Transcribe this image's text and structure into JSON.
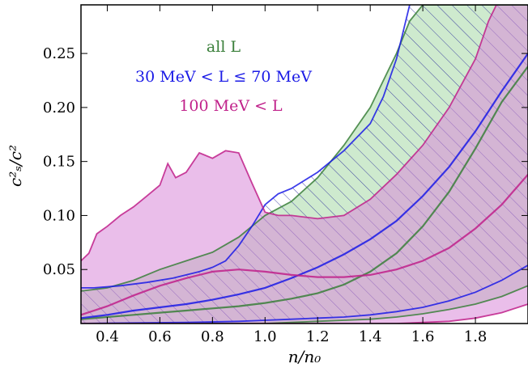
{
  "chart_data": {
    "type": "area",
    "xlabel": "n/n₀",
    "ylabel": "c²ₛ/c²",
    "xlim": [
      0.3,
      2.0
    ],
    "ylim": [
      0.0,
      0.295
    ],
    "xticks": [
      0.4,
      0.6,
      0.8,
      1.0,
      1.2,
      1.4,
      1.6,
      1.8
    ],
    "xtick_labels": [
      "0.4",
      "0.6",
      "0.8",
      "1.0",
      "1.2",
      "1.4",
      "1.6",
      "1.8"
    ],
    "yticks": [
      0.05,
      0.1,
      0.15,
      0.2,
      0.25
    ],
    "ytick_labels": [
      "0.05",
      "0.10",
      "0.15",
      "0.20",
      "0.25"
    ],
    "grid": false,
    "legend_position": "top-center",
    "legend": [
      {
        "text": "all L",
        "color": "#3a7f3a"
      },
      {
        "text": "30 MeV < L ≤ 70 MeV",
        "color": "#1a1ae6"
      },
      {
        "text": "100 MeV < L",
        "color": "#c0208a"
      }
    ],
    "series": [
      {
        "name": "all L",
        "color": "#3a7f3a",
        "fill": "#a6d8a6",
        "style": "filled band",
        "upper": [
          [
            0.3,
            0.03
          ],
          [
            0.4,
            0.033
          ],
          [
            0.5,
            0.04
          ],
          [
            0.6,
            0.05
          ],
          [
            0.7,
            0.058
          ],
          [
            0.8,
            0.066
          ],
          [
            0.9,
            0.08
          ],
          [
            1.0,
            0.1
          ],
          [
            1.1,
            0.113
          ],
          [
            1.2,
            0.135
          ],
          [
            1.3,
            0.165
          ],
          [
            1.4,
            0.2
          ],
          [
            1.5,
            0.25
          ],
          [
            1.55,
            0.28
          ],
          [
            1.6,
            0.295
          ],
          [
            1.7,
            0.295
          ],
          [
            1.8,
            0.295
          ],
          [
            1.9,
            0.295
          ],
          [
            2.0,
            0.295
          ]
        ],
        "median": [
          [
            0.3,
            0.004
          ],
          [
            0.4,
            0.006
          ],
          [
            0.5,
            0.008
          ],
          [
            0.6,
            0.01
          ],
          [
            0.7,
            0.012
          ],
          [
            0.8,
            0.014
          ],
          [
            0.9,
            0.016
          ],
          [
            1.0,
            0.019
          ],
          [
            1.1,
            0.023
          ],
          [
            1.2,
            0.028
          ],
          [
            1.3,
            0.036
          ],
          [
            1.4,
            0.048
          ],
          [
            1.5,
            0.065
          ],
          [
            1.6,
            0.09
          ],
          [
            1.7,
            0.122
          ],
          [
            1.8,
            0.162
          ],
          [
            1.9,
            0.205
          ],
          [
            2.0,
            0.238
          ]
        ],
        "lower": [
          [
            0.3,
            0.0
          ],
          [
            0.4,
            0.0
          ],
          [
            0.5,
            0.0
          ],
          [
            0.6,
            0.0
          ],
          [
            0.7,
            0.0
          ],
          [
            0.8,
            0.0
          ],
          [
            0.9,
            0.0
          ],
          [
            1.0,
            0.0
          ],
          [
            1.1,
            0.001
          ],
          [
            1.2,
            0.002
          ],
          [
            1.3,
            0.003
          ],
          [
            1.4,
            0.004
          ],
          [
            1.5,
            0.006
          ],
          [
            1.6,
            0.009
          ],
          [
            1.7,
            0.013
          ],
          [
            1.8,
            0.018
          ],
          [
            1.9,
            0.025
          ],
          [
            2.0,
            0.035
          ]
        ]
      },
      {
        "name": "30 MeV < L ≤ 70 MeV",
        "color": "#1a1ae6",
        "fill": "none",
        "style": "hatched band",
        "upper": [
          [
            0.3,
            0.033
          ],
          [
            0.35,
            0.033
          ],
          [
            0.45,
            0.035
          ],
          [
            0.55,
            0.038
          ],
          [
            0.65,
            0.042
          ],
          [
            0.75,
            0.048
          ],
          [
            0.8,
            0.052
          ],
          [
            0.85,
            0.058
          ],
          [
            0.9,
            0.072
          ],
          [
            0.95,
            0.09
          ],
          [
            1.0,
            0.11
          ],
          [
            1.05,
            0.12
          ],
          [
            1.1,
            0.125
          ],
          [
            1.2,
            0.14
          ],
          [
            1.3,
            0.16
          ],
          [
            1.4,
            0.185
          ],
          [
            1.45,
            0.21
          ],
          [
            1.5,
            0.245
          ],
          [
            1.53,
            0.275
          ],
          [
            1.55,
            0.295
          ]
        ],
        "median": [
          [
            0.3,
            0.005
          ],
          [
            0.4,
            0.008
          ],
          [
            0.5,
            0.012
          ],
          [
            0.6,
            0.015
          ],
          [
            0.7,
            0.018
          ],
          [
            0.8,
            0.022
          ],
          [
            0.9,
            0.027
          ],
          [
            1.0,
            0.033
          ],
          [
            1.1,
            0.042
          ],
          [
            1.2,
            0.052
          ],
          [
            1.3,
            0.064
          ],
          [
            1.4,
            0.078
          ],
          [
            1.5,
            0.095
          ],
          [
            1.6,
            0.118
          ],
          [
            1.7,
            0.145
          ],
          [
            1.8,
            0.178
          ],
          [
            1.9,
            0.215
          ],
          [
            2.0,
            0.25
          ]
        ],
        "lower": [
          [
            0.3,
            0.0
          ],
          [
            0.5,
            0.0005
          ],
          [
            0.7,
            0.001
          ],
          [
            0.9,
            0.002
          ],
          [
            1.0,
            0.003
          ],
          [
            1.1,
            0.004
          ],
          [
            1.2,
            0.005
          ],
          [
            1.3,
            0.006
          ],
          [
            1.4,
            0.008
          ],
          [
            1.5,
            0.011
          ],
          [
            1.6,
            0.015
          ],
          [
            1.7,
            0.021
          ],
          [
            1.8,
            0.029
          ],
          [
            1.9,
            0.04
          ],
          [
            2.0,
            0.054
          ]
        ]
      },
      {
        "name": "100 MeV < L",
        "color": "#c0208a",
        "fill": "#d888d8",
        "style": "filled band",
        "upper": [
          [
            0.3,
            0.058
          ],
          [
            0.33,
            0.065
          ],
          [
            0.36,
            0.083
          ],
          [
            0.4,
            0.09
          ],
          [
            0.45,
            0.1
          ],
          [
            0.5,
            0.108
          ],
          [
            0.55,
            0.118
          ],
          [
            0.6,
            0.128
          ],
          [
            0.63,
            0.148
          ],
          [
            0.66,
            0.135
          ],
          [
            0.7,
            0.14
          ],
          [
            0.75,
            0.158
          ],
          [
            0.8,
            0.153
          ],
          [
            0.85,
            0.16
          ],
          [
            0.9,
            0.158
          ],
          [
            0.95,
            0.13
          ],
          [
            1.0,
            0.103
          ],
          [
            1.05,
            0.1
          ],
          [
            1.1,
            0.1
          ],
          [
            1.2,
            0.097
          ],
          [
            1.3,
            0.1
          ],
          [
            1.4,
            0.115
          ],
          [
            1.5,
            0.138
          ],
          [
            1.6,
            0.165
          ],
          [
            1.7,
            0.2
          ],
          [
            1.8,
            0.245
          ],
          [
            1.85,
            0.28
          ],
          [
            1.88,
            0.295
          ]
        ],
        "median": [
          [
            0.3,
            0.008
          ],
          [
            0.4,
            0.016
          ],
          [
            0.5,
            0.026
          ],
          [
            0.6,
            0.035
          ],
          [
            0.7,
            0.042
          ],
          [
            0.8,
            0.048
          ],
          [
            0.9,
            0.05
          ],
          [
            1.0,
            0.048
          ],
          [
            1.1,
            0.045
          ],
          [
            1.2,
            0.043
          ],
          [
            1.3,
            0.043
          ],
          [
            1.4,
            0.045
          ],
          [
            1.5,
            0.05
          ],
          [
            1.6,
            0.058
          ],
          [
            1.7,
            0.07
          ],
          [
            1.8,
            0.088
          ],
          [
            1.9,
            0.11
          ],
          [
            2.0,
            0.138
          ]
        ],
        "lower": [
          [
            0.3,
            0.0
          ],
          [
            0.5,
            0.0
          ],
          [
            0.7,
            0.0
          ],
          [
            0.9,
            0.0
          ],
          [
            1.1,
            0.0
          ],
          [
            1.3,
            0.0
          ],
          [
            1.5,
            0.0
          ],
          [
            1.6,
            0.001
          ],
          [
            1.7,
            0.002
          ],
          [
            1.8,
            0.005
          ],
          [
            1.9,
            0.01
          ],
          [
            2.0,
            0.018
          ]
        ]
      }
    ]
  }
}
